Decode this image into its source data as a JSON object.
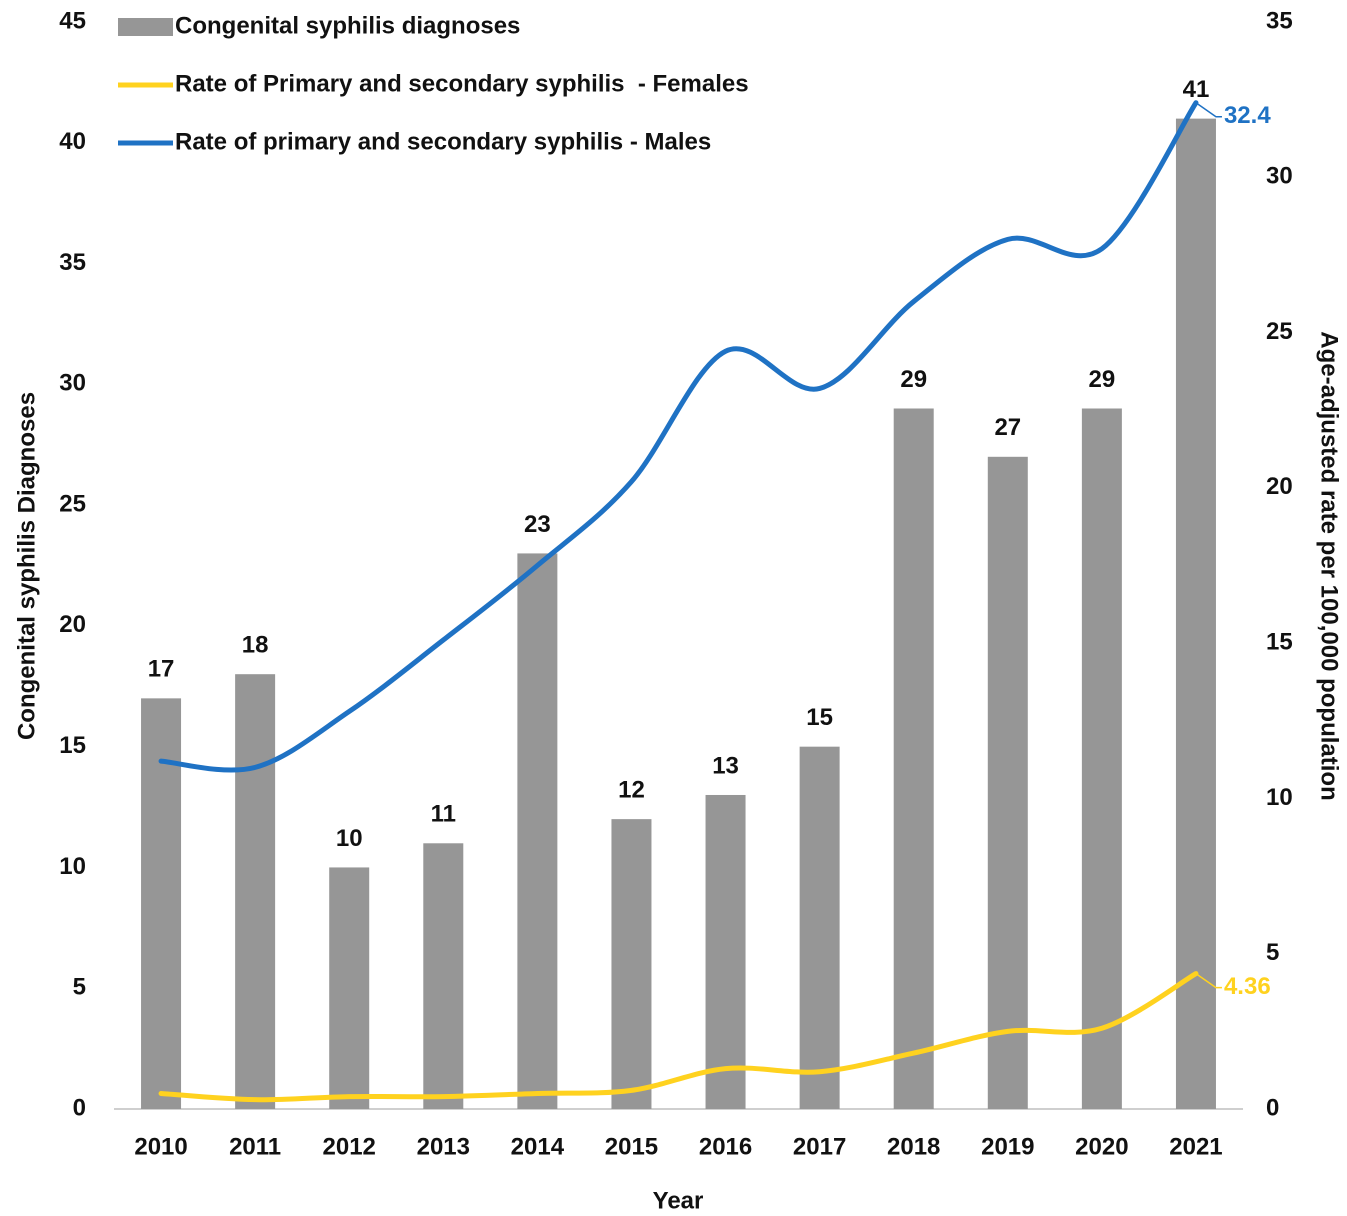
{
  "chart_data": {
    "type": "bar",
    "x_label": "Year",
    "y_label": "Congenital syphilis Diagnoses",
    "y2_label": "Age-adjusted rate per 100,000 population",
    "categories": [
      "2010",
      "2011",
      "2012",
      "2013",
      "2014",
      "2015",
      "2016",
      "2017",
      "2018",
      "2019",
      "2020",
      "2021"
    ],
    "series": [
      {
        "name": "Congenital syphilis diagnoses",
        "type": "bar",
        "color": "#969696",
        "data_labels": "all",
        "values": [
          17,
          18,
          10,
          11,
          23,
          12,
          13,
          15,
          29,
          27,
          29,
          41
        ]
      },
      {
        "name": "Rate of Primary and secondary syphilis  - Females",
        "type": "line",
        "axis": "y2",
        "color": "#ffd21f",
        "data_labels": "last",
        "values": [
          0.5,
          0.3,
          0.4,
          0.4,
          0.5,
          0.6,
          1.3,
          1.2,
          1.8,
          2.5,
          2.6,
          4.36
        ]
      },
      {
        "name": "Rate of primary and secondary syphilis - Males",
        "type": "line",
        "axis": "y2",
        "color": "#1f72c4",
        "data_labels": "last",
        "values": [
          11.2,
          11.0,
          12.8,
          15.1,
          17.5,
          20.2,
          24.4,
          23.2,
          26.0,
          28.0,
          27.7,
          32.4
        ]
      }
    ],
    "ylim": [
      0,
      45
    ],
    "yticks": [
      0,
      5,
      10,
      15,
      20,
      25,
      30,
      35,
      40,
      45
    ],
    "y2lim": [
      0,
      35
    ],
    "y2ticks": [
      0,
      5,
      10,
      15,
      20,
      25,
      30,
      35
    ],
    "legend": "top-left"
  }
}
